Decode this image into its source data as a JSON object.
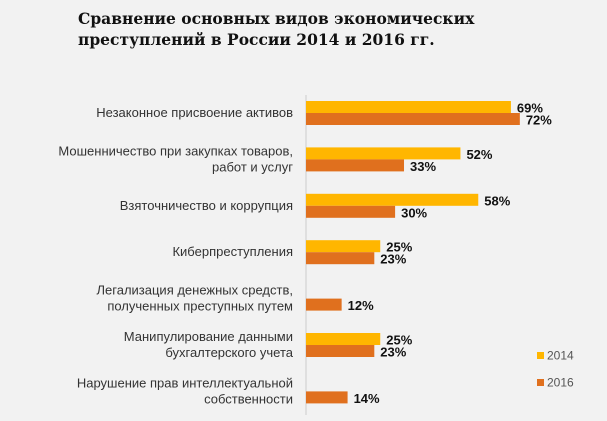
{
  "chart_data": {
    "type": "bar",
    "orientation": "horizontal",
    "title": "Сравнение основных видов экономических преступлений в России 2014 и 2016 гг.",
    "categories": [
      [
        "Незаконное присвоение активов"
      ],
      [
        "Мошенничество при закупках товаров,",
        "работ и услуг"
      ],
      [
        "Взяточничество и коррупция"
      ],
      [
        "Киберпреступления"
      ],
      [
        "Легализация денежных средств,",
        "полученных преступных путем"
      ],
      [
        "Манипулирование данными",
        "бухгалтерского учета"
      ],
      [
        "Нарушение прав интеллектуальной",
        "собственности"
      ]
    ],
    "series": [
      {
        "name": "2014",
        "color": "#ffb600",
        "values": [
          69,
          52,
          58,
          25,
          null,
          25,
          null
        ]
      },
      {
        "name": "2016",
        "color": "#e0701e",
        "values": [
          72,
          33,
          30,
          23,
          12,
          23,
          14
        ]
      }
    ],
    "value_suffix": "%",
    "xlim": [
      0,
      100
    ],
    "grid": false,
    "legend": "bottom-right"
  }
}
